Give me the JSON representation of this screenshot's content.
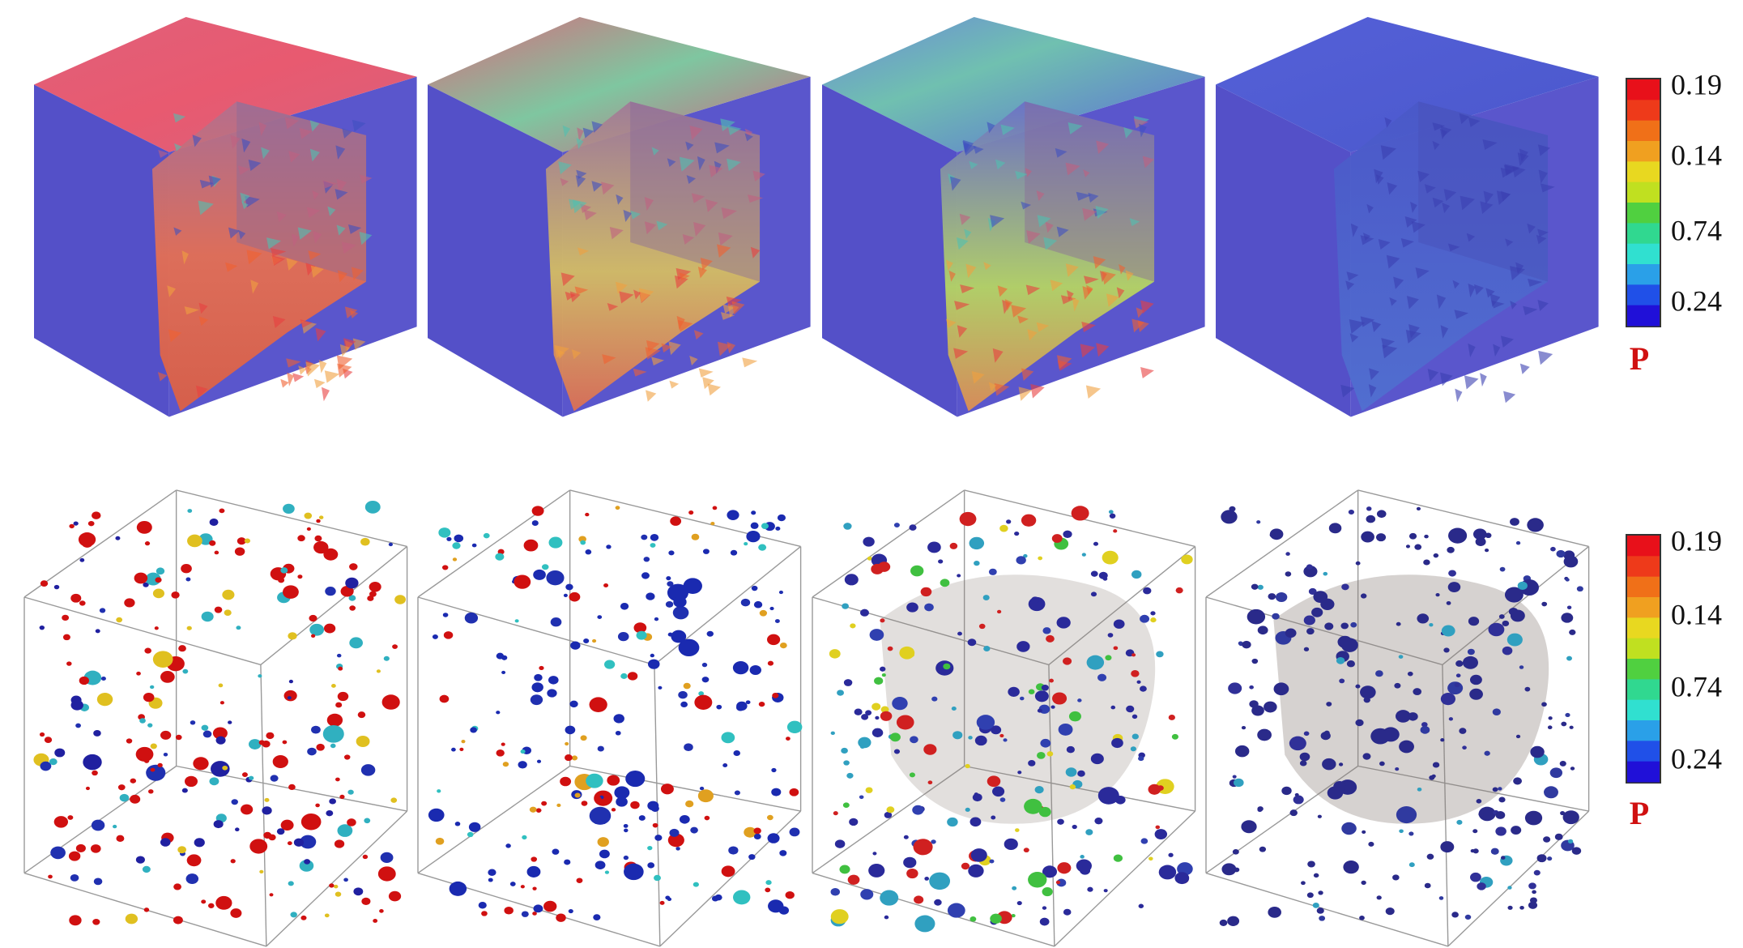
{
  "colorbars": [
    {
      "ticks": [
        "0.19",
        "0.14",
        "0.74",
        "0.24"
      ],
      "label": "P"
    },
    {
      "ticks": [
        "0.19",
        "0.14",
        "0.74",
        "0.24"
      ],
      "label": "P"
    }
  ]
}
